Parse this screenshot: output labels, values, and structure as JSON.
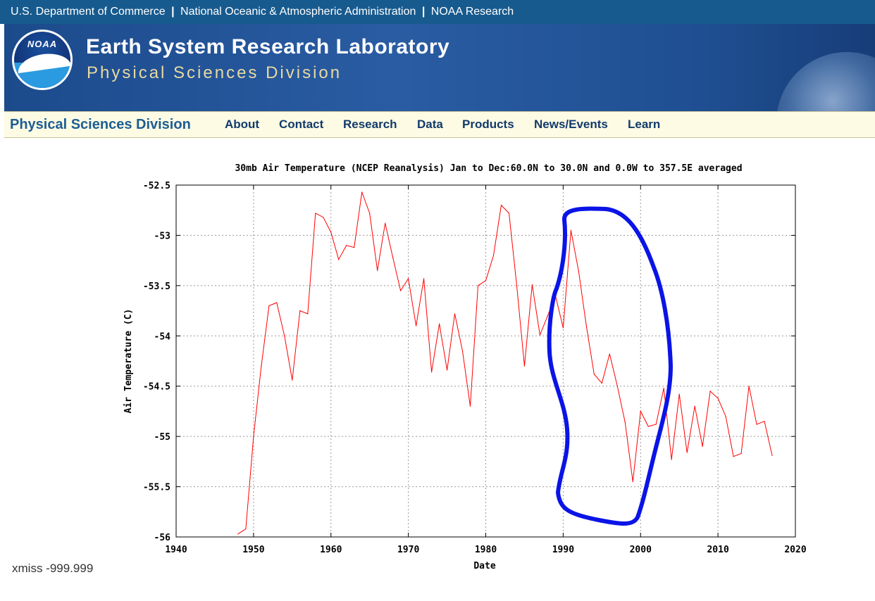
{
  "header": {
    "dept": "U.S. Department of Commerce",
    "sep": "|",
    "agency": "National Oceanic & Atmospheric Administration",
    "research": "NOAA Research"
  },
  "banner": {
    "logo_text": "NOAA",
    "title": "Earth System Research Laboratory",
    "subtitle": "Physical Sciences Division"
  },
  "nav": {
    "brand": "Physical Sciences Division",
    "items": [
      "About",
      "Contact",
      "Research",
      "Data",
      "Products",
      "News/Events",
      "Learn"
    ]
  },
  "colors": {
    "topbar": "#175a8e",
    "series": "#ff0000",
    "annotation": "#0a14e6",
    "nav_bg": "#fdfbe4"
  },
  "chart_data": {
    "type": "line",
    "title": "30mb Air Temperature (NCEP Reanalysis) Jan to Dec:60.0N to 30.0N and 0.0W to 357.5E averaged",
    "xlabel": "Date",
    "ylabel": "Air Temperature (C)",
    "xlim": [
      1940,
      2020
    ],
    "ylim": [
      -56,
      -52.5
    ],
    "x_ticks": [
      "1940",
      "1950",
      "1960",
      "1970",
      "1980",
      "1990",
      "2000",
      "2010",
      "2020"
    ],
    "y_ticks": [
      "-52.5",
      "-53",
      "-53.5",
      "-54",
      "-54.5",
      "-55",
      "-55.5",
      "-56"
    ],
    "grid": true,
    "series": [
      {
        "x": [
          1948,
          1949,
          1950,
          1951,
          1952,
          1953,
          1954,
          1955,
          1956,
          1957,
          1958,
          1959,
          1960,
          1961,
          1962,
          1963,
          1964,
          1965,
          1966,
          1967,
          1968,
          1969,
          1970,
          1971,
          1972,
          1973,
          1974,
          1975,
          1976,
          1977,
          1978,
          1979,
          1980,
          1981,
          1982,
          1983,
          1984,
          1985,
          1986,
          1987,
          1988,
          1989,
          1990,
          1991,
          1992,
          1993,
          1994,
          1995,
          1996,
          1997,
          1998,
          1999,
          2000,
          2001,
          2002,
          2003,
          2004,
          2005,
          2006,
          2007,
          2008,
          2009,
          2010,
          2011,
          2012,
          2013,
          2014,
          2015,
          2016,
          2017
        ],
        "y": [
          -55.97,
          -55.92,
          -55.0,
          -54.3,
          -53.7,
          -53.67,
          -54.0,
          -54.44,
          -53.75,
          -53.78,
          -52.78,
          -52.82,
          -52.97,
          -53.24,
          -53.1,
          -53.12,
          -52.57,
          -52.78,
          -53.35,
          -52.88,
          -53.22,
          -53.55,
          -53.43,
          -53.9,
          -53.43,
          -54.36,
          -53.88,
          -54.34,
          -53.78,
          -54.15,
          -54.7,
          -53.5,
          -53.45,
          -53.2,
          -52.7,
          -52.78,
          -53.5,
          -54.3,
          -53.49,
          -53.99,
          -53.8,
          -53.6,
          -53.92,
          -52.95,
          -53.36,
          -53.9,
          -54.38,
          -54.47,
          -54.18,
          -54.5,
          -54.86,
          -55.45,
          -54.75,
          -54.9,
          -54.88,
          -54.52,
          -55.23,
          -54.58,
          -55.16,
          -54.7,
          -55.1,
          -54.55,
          -54.62,
          -54.8,
          -55.2,
          -55.17,
          -54.5,
          -54.88,
          -54.85,
          -55.19
        ]
      }
    ]
  },
  "footer": {
    "xmiss": "xmiss -999.999"
  }
}
